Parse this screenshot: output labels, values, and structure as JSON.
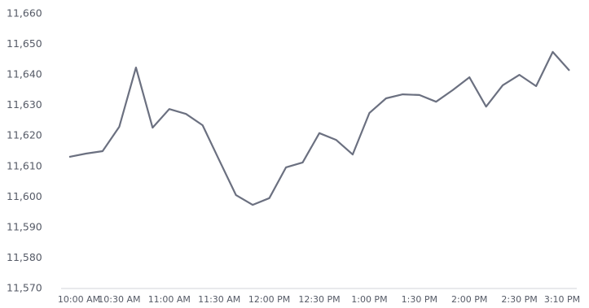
{
  "chart_data": {
    "type": "line",
    "categories": [
      "10:00 AM",
      null,
      null,
      "10:30 AM",
      null,
      null,
      "11:00 AM",
      null,
      null,
      "11:30 AM",
      null,
      null,
      "12:00 PM",
      null,
      null,
      "12:30 PM",
      null,
      null,
      "1:00 PM",
      null,
      null,
      "1:30 PM",
      null,
      null,
      "2:00 PM",
      null,
      null,
      "2:30 PM",
      null,
      null,
      "3:10 PM"
    ],
    "series": [
      {
        "color": "#6b7080",
        "values": [
          11613.1,
          11614.2,
          11615,
          11623,
          11642.4,
          11622.7,
          11628.8,
          11627.2,
          11623.5,
          11612,
          11600.6,
          11597.4,
          11599.6,
          11609.7,
          11611.3,
          11620.9,
          11618.7,
          11613.9,
          11627.5,
          11632.3,
          11633.6,
          11633.4,
          11631.2,
          11635,
          11639.2,
          11629.6,
          11636.6,
          11640,
          11636.3,
          11647.5,
          11641.4
        ]
      }
    ],
    "ylim": [
      11570,
      11660
    ],
    "yticks": [
      {
        "value": 11570,
        "label": "11,570"
      },
      {
        "value": 11580,
        "label": "11,580"
      },
      {
        "value": 11590,
        "label": "11,590"
      },
      {
        "value": 11600,
        "label": "11,600"
      },
      {
        "value": 11610,
        "label": "11,610"
      },
      {
        "value": 11620,
        "label": "11,620"
      },
      {
        "value": 11630,
        "label": "11,630"
      },
      {
        "value": 11640,
        "label": "11,640"
      },
      {
        "value": 11650,
        "label": "11,650"
      },
      {
        "value": 11660,
        "label": "11,660"
      }
    ],
    "grid": false
  }
}
